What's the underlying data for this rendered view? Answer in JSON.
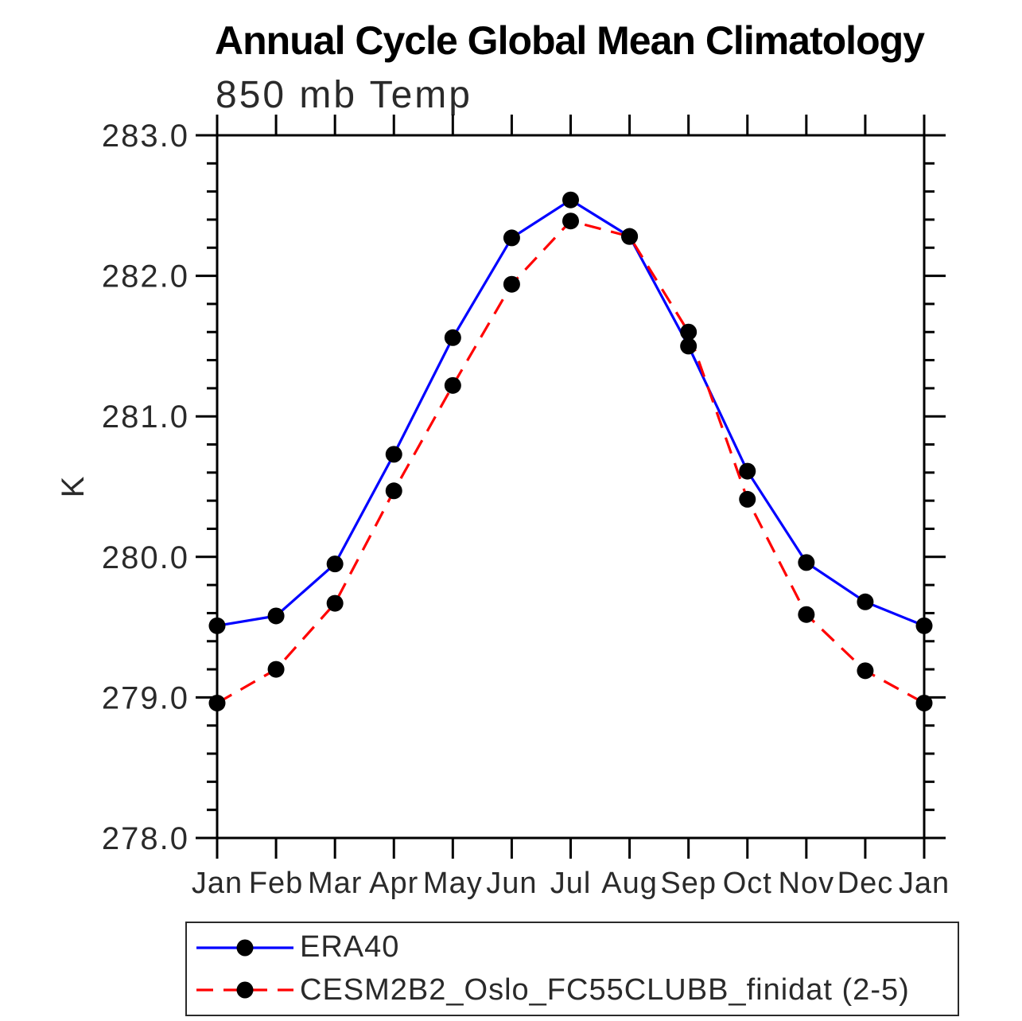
{
  "chart_data": {
    "type": "line",
    "title": "Annual Cycle Global Mean Climatology",
    "subtitle": "850 mb Temp",
    "ylabel": "K",
    "xlabel": "",
    "categories": [
      "Jan",
      "Feb",
      "Mar",
      "Apr",
      "May",
      "Jun",
      "Jul",
      "Aug",
      "Sep",
      "Oct",
      "Nov",
      "Dec",
      "Jan"
    ],
    "ylim": [
      278.0,
      283.0
    ],
    "ytick_major_interval": 1.0,
    "ytick_minor_interval": 0.2,
    "ytick_label_format": "one-decimal",
    "ytick_labels": [
      "278.0",
      "279.0",
      "280.0",
      "281.0",
      "282.0",
      "283.0"
    ],
    "grid": false,
    "frame": "box-with-outward-ticks",
    "legend_position": "bottom-left-boxed",
    "marker": {
      "shape": "circle",
      "color": "#000000",
      "radius": 10.5
    },
    "series": [
      {
        "name": "ERA40",
        "color": "#0000ff",
        "line_style": "solid",
        "values": [
          279.51,
          279.58,
          279.95,
          280.73,
          281.56,
          282.27,
          282.54,
          282.28,
          281.5,
          280.61,
          279.96,
          279.68,
          279.51
        ]
      },
      {
        "name": "CESM2B2_Oslo_FC55CLUBB_finidat (2-5)",
        "color": "#ff0000",
        "line_style": "dashed",
        "values": [
          278.96,
          279.2,
          279.67,
          280.47,
          281.22,
          281.94,
          282.39,
          282.28,
          281.6,
          280.41,
          279.59,
          279.19,
          278.96
        ]
      }
    ]
  }
}
